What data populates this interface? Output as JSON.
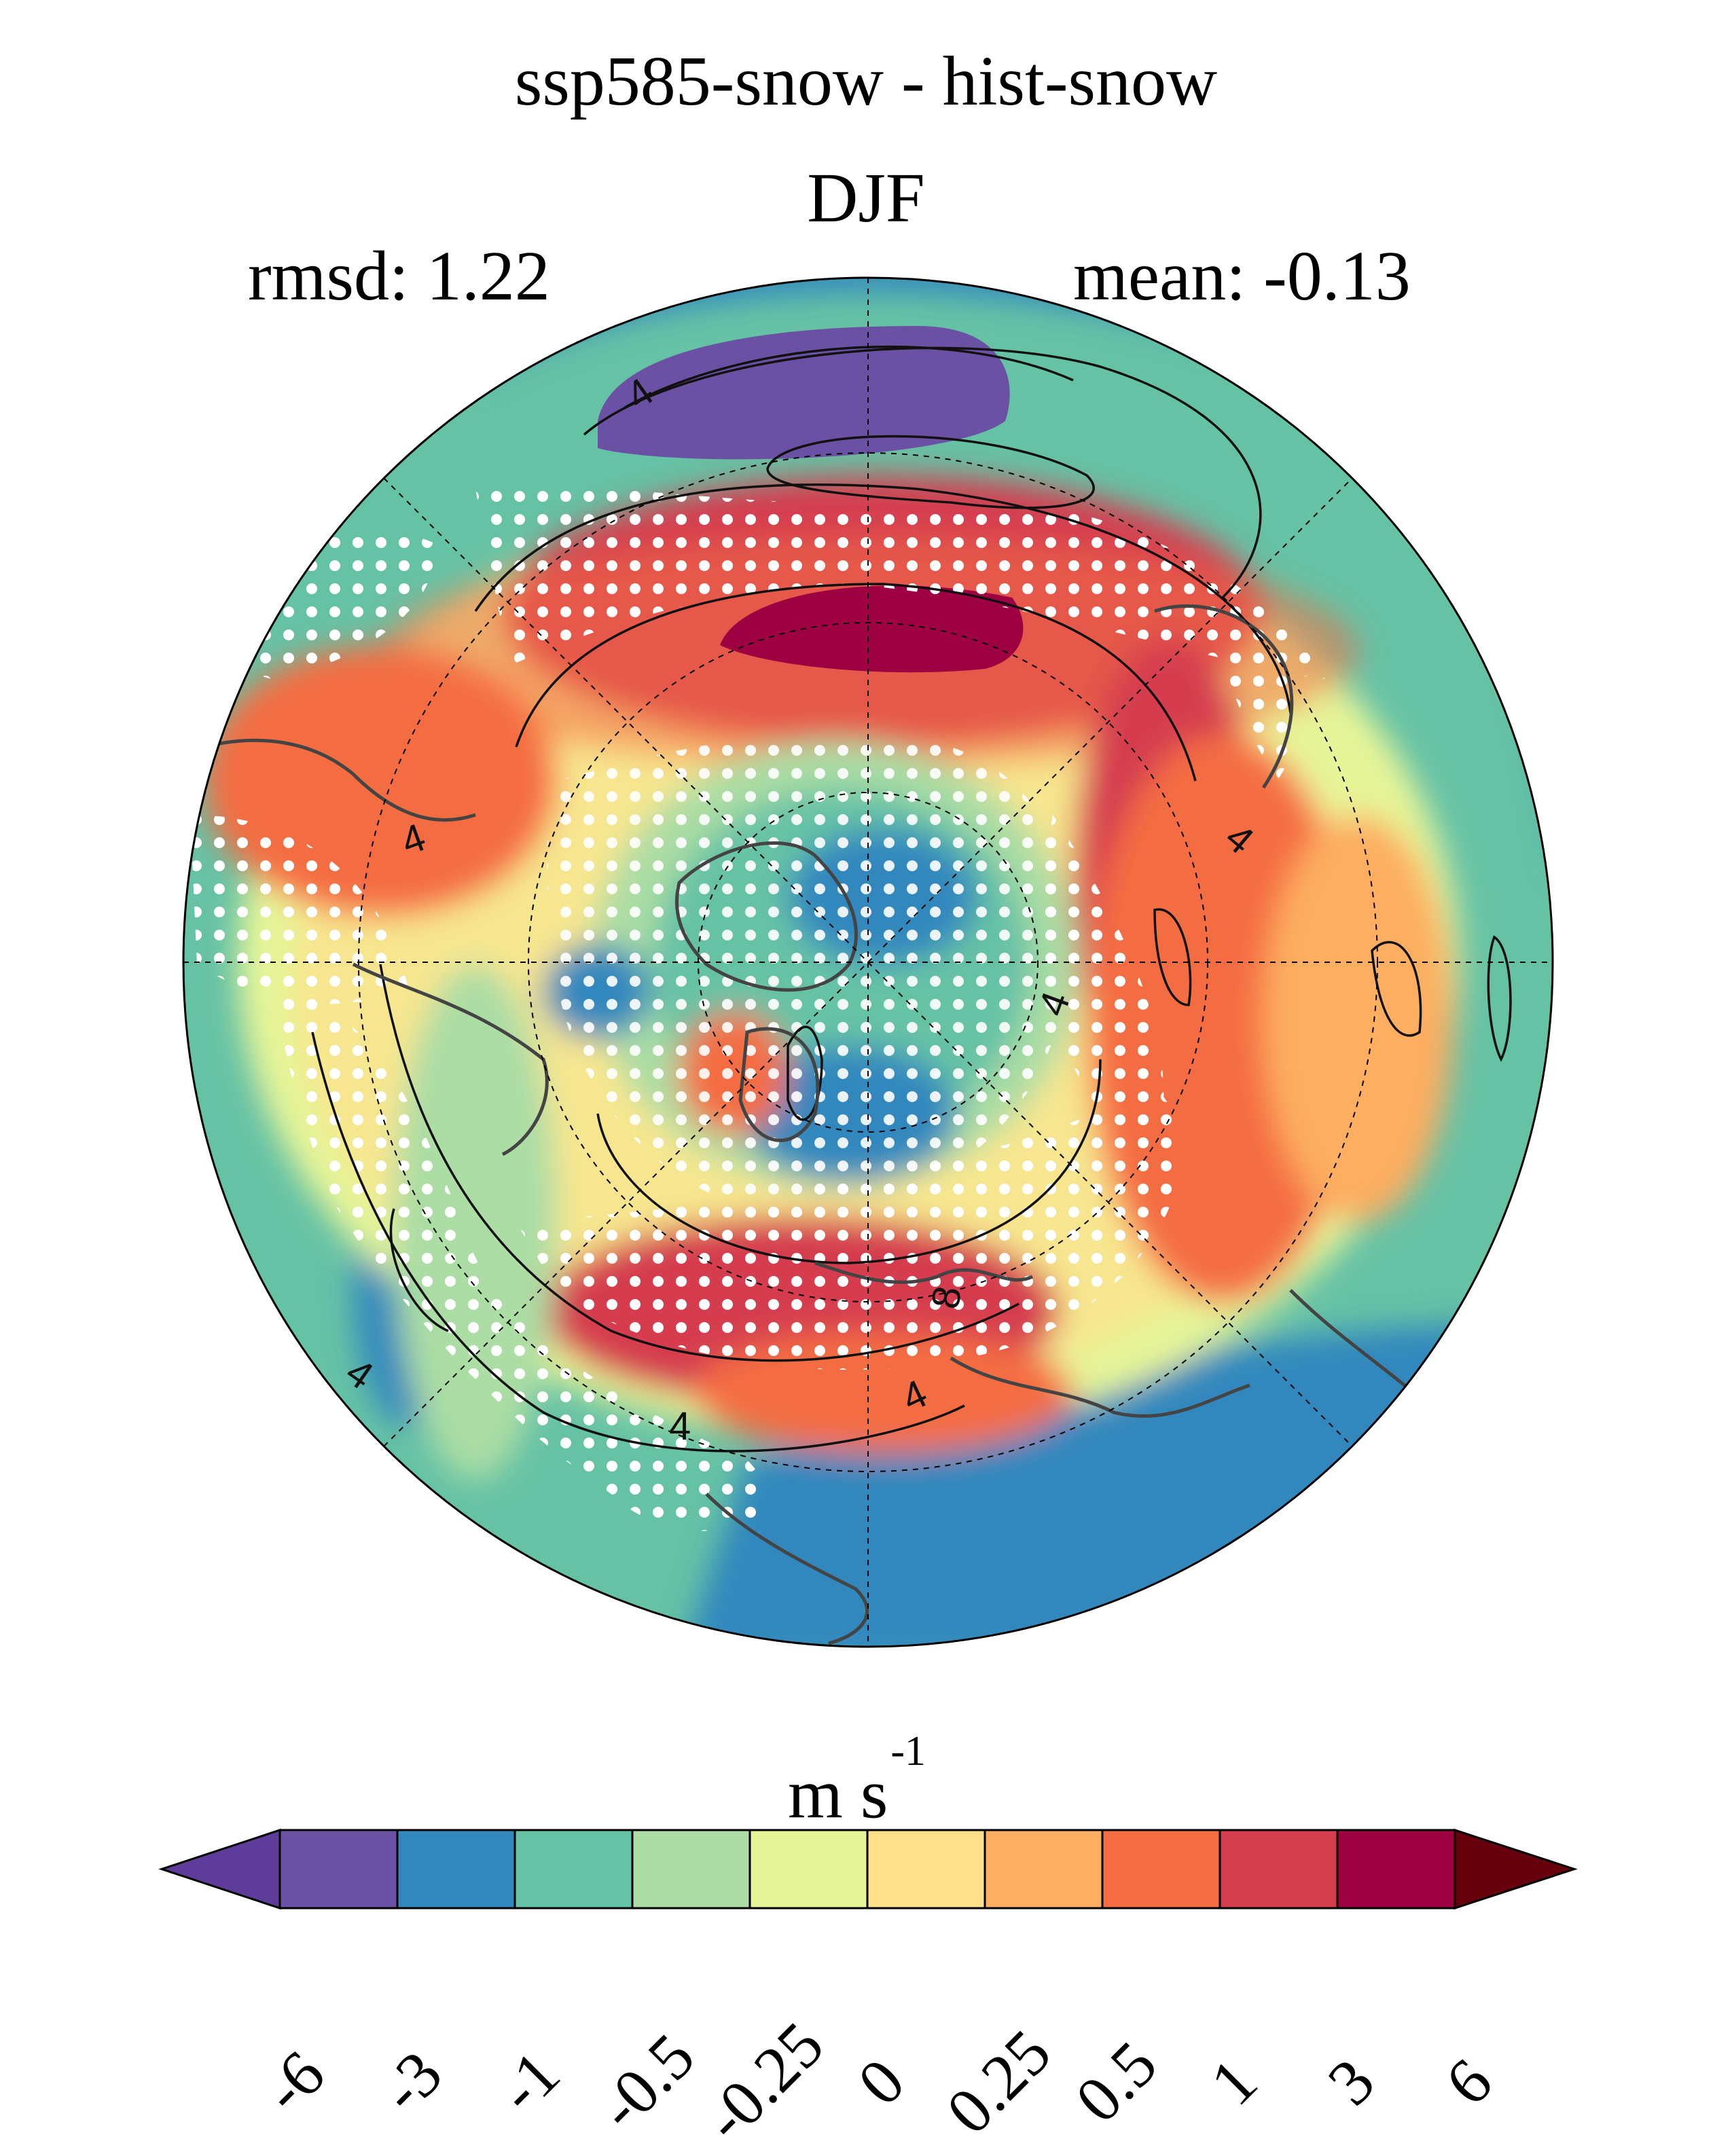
{
  "title": "ssp585-snow - hist-snow",
  "subtitle": "DJF",
  "stats": {
    "rmsd": "rmsd: 1.22",
    "mean": "mean: -0.13"
  },
  "colorbar": {
    "units_base": "m s",
    "units_exp": "-1",
    "ticks": [
      "-6",
      "-3",
      "-1",
      "-0.5",
      "-0.25",
      "0",
      "0.25",
      "0.5",
      "1",
      "3",
      "6"
    ],
    "colors": [
      "#5e3c99",
      "#6a51a3",
      "#3288bd",
      "#66c2a5",
      "#abdda4",
      "#e6f598",
      "#fee08b",
      "#fdae61",
      "#f46d43",
      "#d53e4f",
      "#9e0142",
      "#67000d"
    ]
  },
  "contour_labels": [
    "4",
    "4",
    "4",
    "4",
    "4",
    "4",
    "4",
    "8"
  ]
}
